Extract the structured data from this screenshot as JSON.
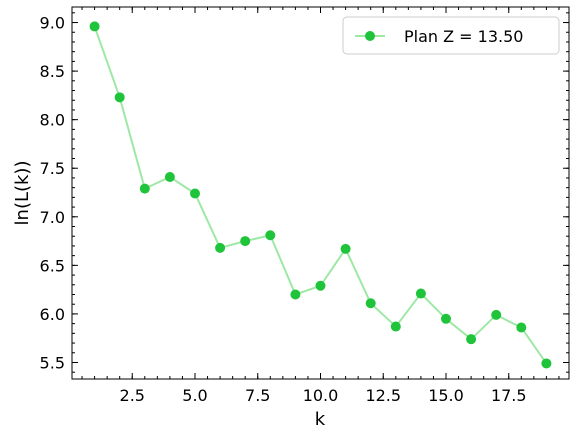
{
  "chart_data": {
    "type": "line",
    "xlabel": "k",
    "ylabel": "ln(L(k))",
    "xlim": [
      0.1,
      19.9
    ],
    "ylim": [
      5.33,
      9.16
    ],
    "x_ticks": [
      2.5,
      5.0,
      7.5,
      10.0,
      12.5,
      15.0,
      17.5
    ],
    "x_tick_labels": [
      "2.5",
      "5.0",
      "7.5",
      "10.0",
      "12.5",
      "15.0",
      "17.5"
    ],
    "y_ticks": [
      5.5,
      6.0,
      6.5,
      7.0,
      7.5,
      8.0,
      8.5,
      9.0
    ],
    "y_tick_labels": [
      "5.5",
      "6.0",
      "6.5",
      "7.0",
      "7.5",
      "8.0",
      "8.5",
      "9.0"
    ],
    "x_minor_step": 0.5,
    "y_minor_step": 0.1,
    "grid": false,
    "legend_position": "top-right",
    "series": [
      {
        "name": "Plan Z = 13.50",
        "marker_color": "#1fc43a",
        "line_color": "#9ee8a6",
        "x": [
          1,
          2,
          3,
          4,
          5,
          6,
          7,
          8,
          9,
          10,
          11,
          12,
          13,
          14,
          15,
          16,
          17,
          18,
          19
        ],
        "y": [
          8.96,
          8.23,
          7.29,
          7.41,
          7.24,
          6.68,
          6.75,
          6.81,
          6.2,
          6.29,
          6.67,
          6.11,
          5.87,
          6.21,
          5.95,
          5.74,
          5.99,
          5.86,
          5.49
        ]
      }
    ]
  }
}
